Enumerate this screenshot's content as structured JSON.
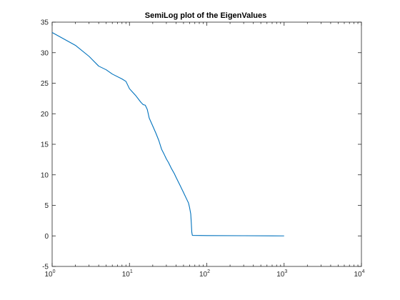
{
  "chart_data": {
    "type": "line",
    "title": "SemiLog plot of the EigenValues",
    "xlabel": "",
    "ylabel": "",
    "xscale": "log",
    "xlim": [
      1,
      10000
    ],
    "ylim": [
      -5,
      35
    ],
    "xticks": [
      1,
      10,
      100,
      1000,
      10000
    ],
    "xtick_labels": [
      {
        "base": "10",
        "exp": "0"
      },
      {
        "base": "10",
        "exp": "1"
      },
      {
        "base": "10",
        "exp": "2"
      },
      {
        "base": "10",
        "exp": "3"
      },
      {
        "base": "10",
        "exp": "4"
      }
    ],
    "yticks": [
      -5,
      0,
      5,
      10,
      15,
      20,
      25,
      30,
      35
    ],
    "ytick_labels": [
      "-5",
      "0",
      "5",
      "10",
      "15",
      "20",
      "25",
      "30",
      "35"
    ],
    "grid": false,
    "legend": "none",
    "series": [
      {
        "color": "#0072BD",
        "x": [
          1,
          2,
          3,
          4,
          5,
          6,
          8,
          9,
          10,
          12,
          14,
          15,
          16,
          17,
          18,
          20,
          22,
          24,
          26,
          28,
          30,
          32,
          35,
          38,
          40,
          45,
          50,
          55,
          58,
          60,
          62,
          63,
          64,
          65,
          66,
          100,
          300,
          1000
        ],
        "y": [
          33.3,
          31.2,
          29.4,
          27.8,
          27.2,
          26.5,
          25.7,
          25.3,
          24.1,
          23.0,
          21.9,
          21.5,
          21.4,
          20.7,
          19.3,
          18.0,
          16.8,
          15.6,
          14.2,
          13.4,
          12.6,
          12.0,
          11.0,
          10.2,
          9.6,
          8.3,
          7.1,
          6.0,
          5.4,
          4.6,
          3.6,
          2.2,
          0.6,
          0.1,
          0.08,
          0.05,
          0.03,
          0.0
        ]
      }
    ]
  }
}
